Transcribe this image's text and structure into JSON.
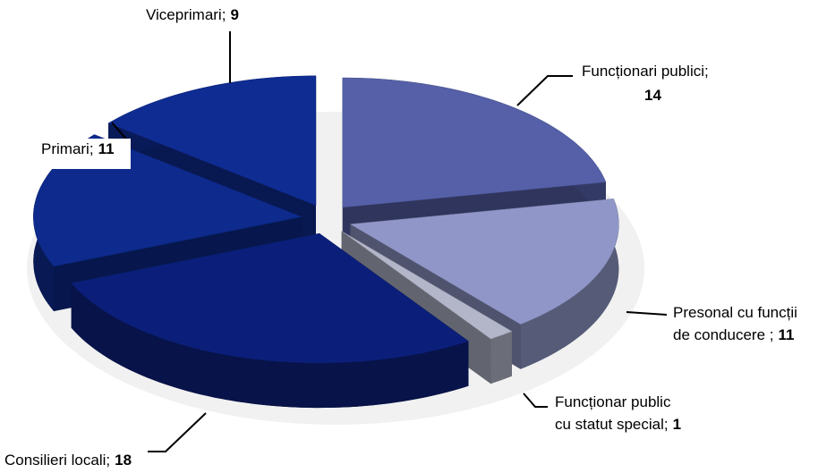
{
  "chart_data": {
    "type": "pie3d",
    "categories": [
      "Funcționari publici;",
      "Presonal cu funcții\nde conducere ;",
      "Funcționar public\ncu statut special;",
      "Consilieri locali;",
      "Primari;",
      "Viceprimari;"
    ],
    "values": [
      14,
      11,
      1,
      18,
      11,
      9
    ],
    "colors": [
      "#5560a8",
      "#9097c8",
      "#b3b5c9",
      "#0b1f7a",
      "#0d2a8c",
      "#0f2c92"
    ]
  }
}
